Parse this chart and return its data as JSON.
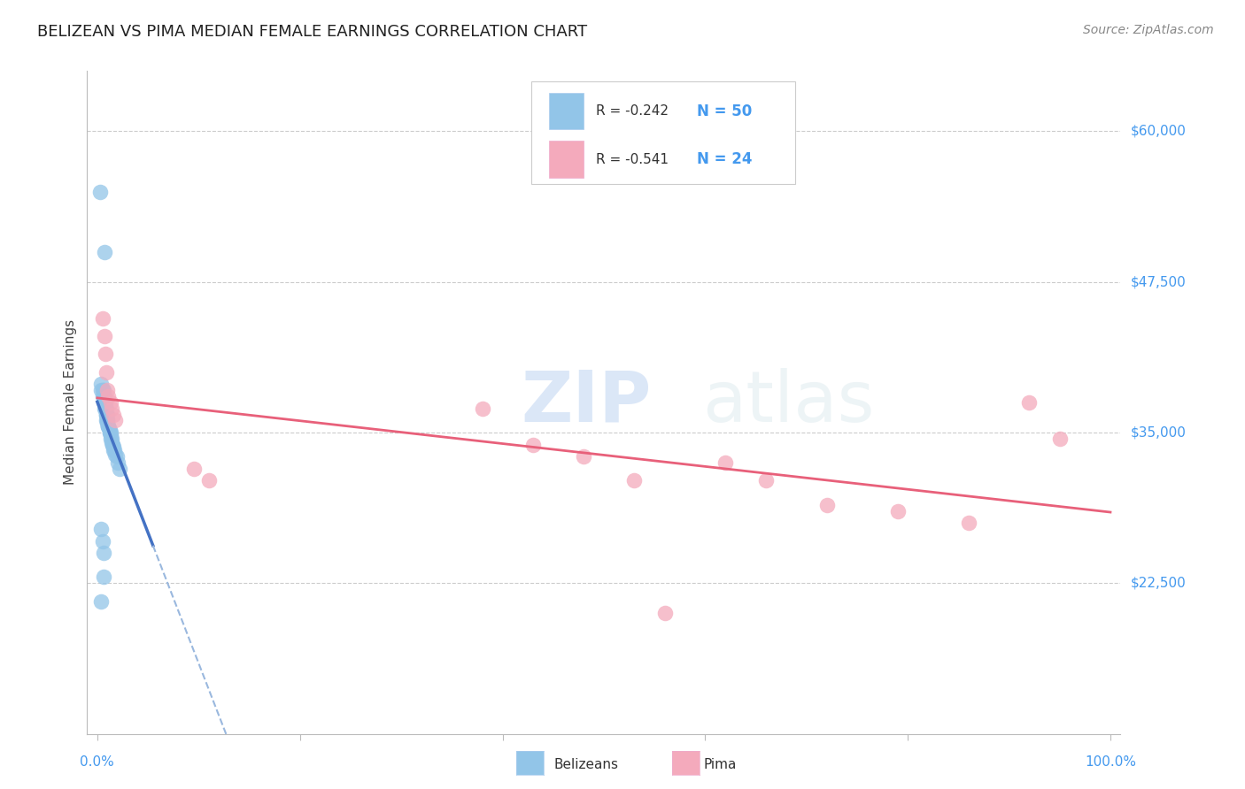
{
  "title": "BELIZEAN VS PIMA MEDIAN FEMALE EARNINGS CORRELATION CHART",
  "source": "Source: ZipAtlas.com",
  "ylabel": "Median Female Earnings",
  "ytick_labels": [
    "$22,500",
    "$35,000",
    "$47,500",
    "$60,000"
  ],
  "ytick_values": [
    22500,
    35000,
    47500,
    60000
  ],
  "ymin": 10000,
  "ymax": 65000,
  "xmin": -0.01,
  "xmax": 1.01,
  "legend_r1": "R = -0.242",
  "legend_n1": "N = 50",
  "legend_r2": "R = -0.541",
  "legend_n2": "N = 24",
  "belizean_color": "#92C5E8",
  "pima_color": "#F4AABC",
  "trendline_belizean_solid_color": "#4472C4",
  "trendline_belizean_dash_color": "#9AB8DE",
  "trendline_pima_color": "#E8607A",
  "watermark_zip": "ZIP",
  "watermark_atlas": "atlas",
  "belizean_x": [
    0.003,
    0.007,
    0.004,
    0.005,
    0.006,
    0.006,
    0.007,
    0.007,
    0.008,
    0.009,
    0.009,
    0.01,
    0.01,
    0.011,
    0.011,
    0.012,
    0.012,
    0.013,
    0.013,
    0.014,
    0.014,
    0.015,
    0.015,
    0.016,
    0.016,
    0.017,
    0.018,
    0.019,
    0.02,
    0.022,
    0.004,
    0.005,
    0.006,
    0.007,
    0.008,
    0.009,
    0.01,
    0.011,
    0.012,
    0.013,
    0.006,
    0.007,
    0.008,
    0.009,
    0.01,
    0.004,
    0.005,
    0.006,
    0.004,
    0.006
  ],
  "belizean_y": [
    55000,
    50000,
    38500,
    38000,
    38000,
    37500,
    37500,
    37000,
    37000,
    36500,
    36000,
    36000,
    35800,
    35500,
    35500,
    35200,
    35000,
    35000,
    34800,
    34500,
    34200,
    34000,
    34000,
    33800,
    33500,
    33500,
    33200,
    33000,
    32500,
    32000,
    39000,
    38500,
    38000,
    37500,
    37000,
    36500,
    36000,
    35500,
    35000,
    34500,
    38500,
    38000,
    37500,
    37000,
    36500,
    27000,
    26000,
    25000,
    21000,
    23000
  ],
  "pima_x": [
    0.005,
    0.007,
    0.008,
    0.009,
    0.01,
    0.011,
    0.013,
    0.014,
    0.016,
    0.018,
    0.095,
    0.11,
    0.38,
    0.43,
    0.48,
    0.53,
    0.56,
    0.62,
    0.66,
    0.72,
    0.79,
    0.86,
    0.92,
    0.95
  ],
  "pima_y": [
    44500,
    43000,
    41500,
    40000,
    38500,
    38000,
    37500,
    37000,
    36500,
    36000,
    32000,
    31000,
    37000,
    34000,
    33000,
    31000,
    20000,
    32500,
    31000,
    29000,
    28500,
    27500,
    37500,
    34500
  ],
  "belizean_trendline_x0": 0.0,
  "belizean_trendline_x1": 0.055,
  "belizean_trendline_xdash_end": 0.3,
  "pima_trendline_x0": 0.0,
  "pima_trendline_x1": 1.0
}
